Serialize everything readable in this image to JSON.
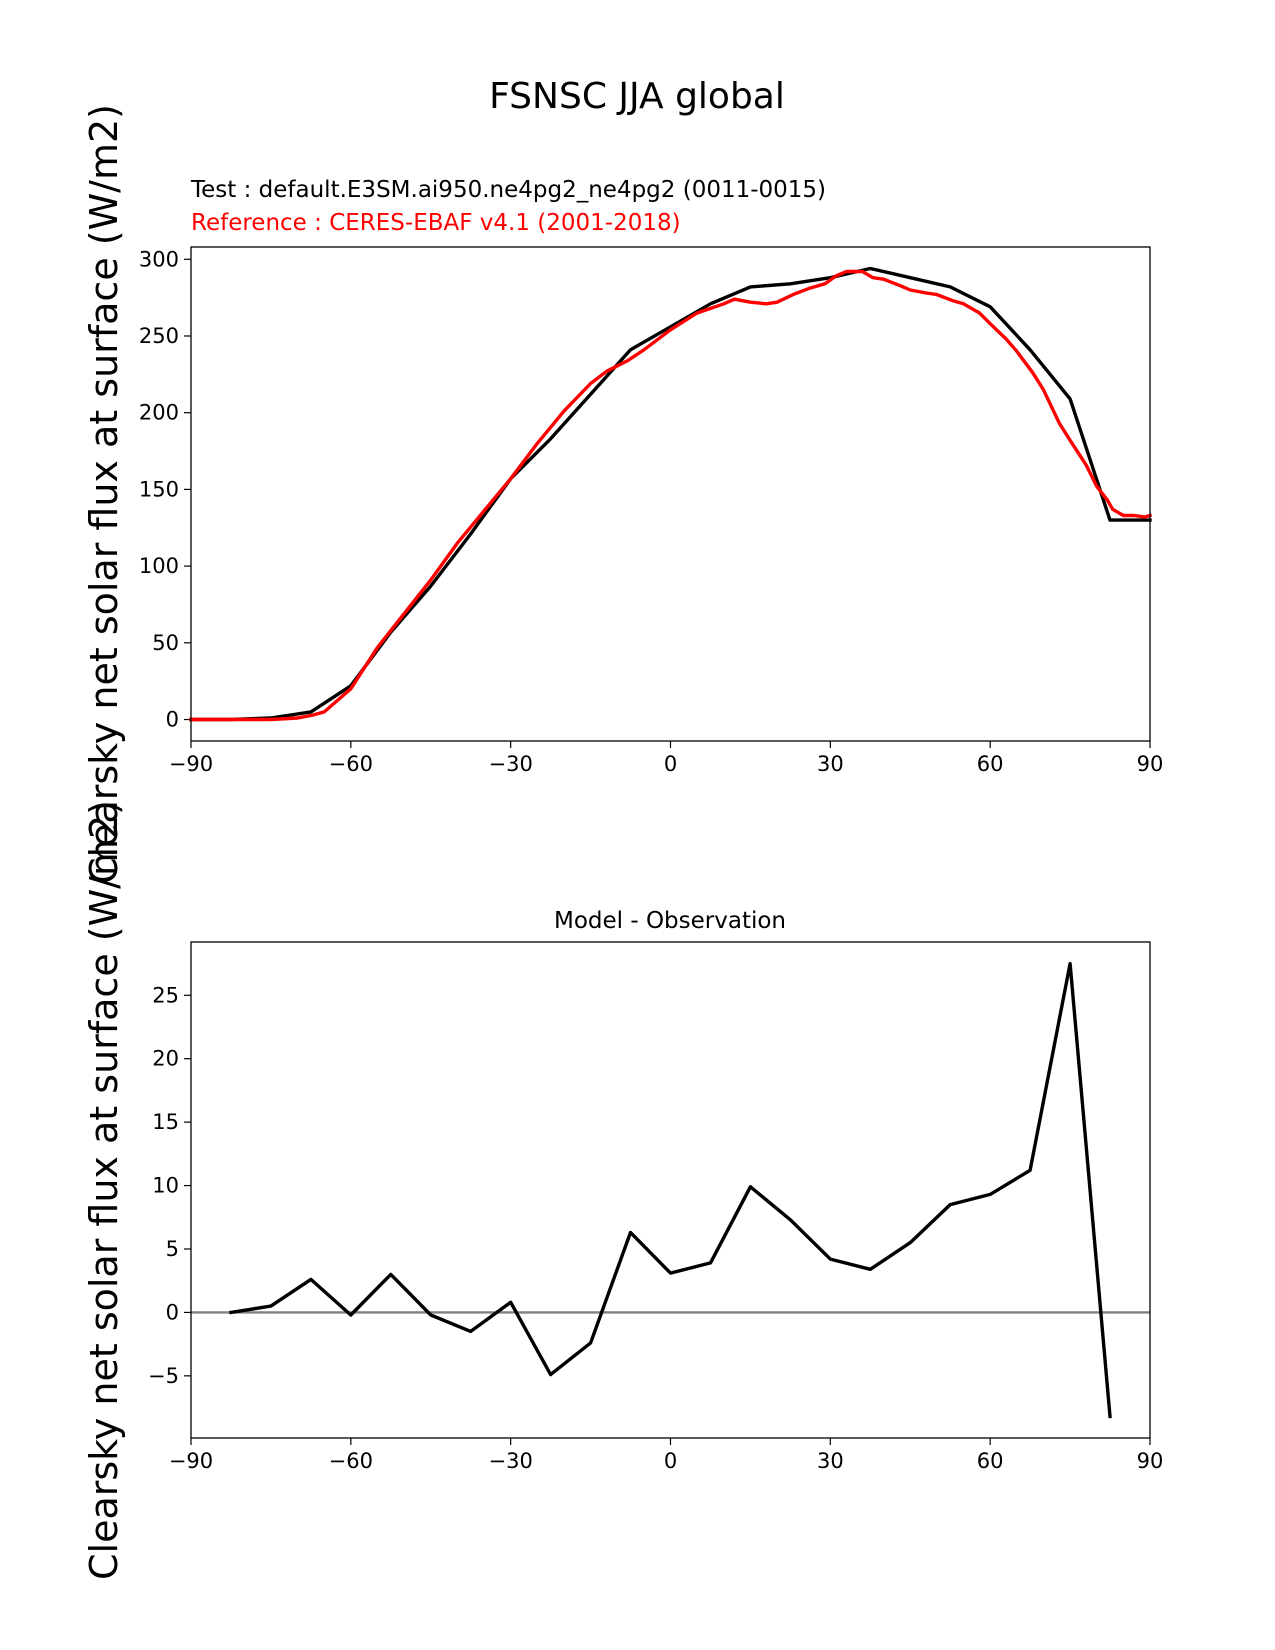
{
  "figure": {
    "suptitle": "FSNSC JJA global"
  },
  "chart_data": [
    {
      "type": "line",
      "test_label": "Test : default.E3SM.ai950.ne4pg2_ne4pg2 (0011-0015)",
      "reference_label": "Reference : CERES-EBAF v4.1 (2001-2018)",
      "ylabel": "Clearsky net solar flux at surface (W/m2)",
      "xlim": [
        -90,
        90
      ],
      "ylim": [
        -14,
        308
      ],
      "xticks": [
        "−90",
        "−60",
        "−30",
        "0",
        "30",
        "60",
        "90"
      ],
      "xtick_values": [
        -90,
        -60,
        -30,
        0,
        30,
        60,
        90
      ],
      "yticks": [
        "0",
        "50",
        "100",
        "150",
        "200",
        "250",
        "300"
      ],
      "ytick_values": [
        0,
        50,
        100,
        150,
        200,
        250,
        300
      ],
      "series": [
        {
          "name": "Test",
          "color": "#000000",
          "x": [
            -90,
            -82.5,
            -75,
            -67.5,
            -60,
            -52.5,
            -45,
            -37.5,
            -30,
            -22.5,
            -15,
            -7.5,
            0,
            7.5,
            15,
            22.5,
            30,
            37.5,
            45,
            52.5,
            60,
            67.5,
            75,
            82.5,
            90
          ],
          "y": [
            0,
            0,
            1,
            5,
            22,
            57,
            87,
            121,
            157,
            183,
            212,
            241,
            256,
            271,
            282,
            284,
            288,
            294,
            288,
            282,
            269,
            241,
            209,
            130,
            130
          ]
        },
        {
          "name": "Reference",
          "color": "#ff0000",
          "x": [
            -90,
            -80,
            -75,
            -70,
            -67,
            -65,
            -63,
            -60,
            -55,
            -50,
            -45,
            -40,
            -35,
            -30,
            -25,
            -20,
            -15,
            -12,
            -8,
            -5,
            0,
            5,
            10,
            12,
            15,
            18,
            20,
            23,
            26,
            29,
            31,
            33,
            36,
            38,
            40,
            43,
            45,
            48,
            50,
            53,
            55,
            58,
            60,
            63,
            65,
            68,
            70,
            73,
            75,
            78,
            80,
            82,
            83,
            85,
            87,
            89,
            90
          ],
          "y": [
            0,
            0,
            0,
            1,
            3,
            5,
            11,
            20,
            47,
            69,
            91,
            115,
            136,
            157,
            180,
            201,
            219,
            227,
            234,
            241,
            254,
            265,
            271,
            274,
            272,
            271,
            272,
            277,
            281,
            284,
            289,
            292,
            292,
            288,
            287,
            283,
            280,
            278,
            277,
            273,
            271,
            265,
            258,
            248,
            240,
            226,
            215,
            193,
            182,
            166,
            152,
            143,
            137,
            133,
            133,
            132,
            133
          ]
        }
      ]
    },
    {
      "type": "line",
      "title": "Model - Observation",
      "ylabel": "Clearsky net solar flux at surface (W/m2)",
      "xlim": [
        -90,
        90
      ],
      "ylim": [
        -9.9,
        29.2
      ],
      "xticks": [
        "−90",
        "−60",
        "−30",
        "0",
        "30",
        "60",
        "90"
      ],
      "xtick_values": [
        -90,
        -60,
        -30,
        0,
        30,
        60,
        90
      ],
      "yticks": [
        "−5",
        "0",
        "5",
        "10",
        "15",
        "20",
        "25"
      ],
      "ytick_values": [
        -5,
        0,
        5,
        10,
        15,
        20,
        25
      ],
      "zero_line_color": "#808080",
      "series": [
        {
          "name": "Model - Observation",
          "color": "#000000",
          "x": [
            -82.5,
            -75,
            -67.5,
            -60,
            -52.5,
            -45,
            -37.5,
            -30,
            -22.5,
            -15,
            -7.5,
            0,
            7.5,
            15,
            22.5,
            30,
            37.5,
            45,
            52.5,
            60,
            67.5,
            75,
            82.5
          ],
          "y": [
            0,
            0.5,
            2.6,
            -0.2,
            3.0,
            -0.2,
            -1.5,
            0.8,
            -4.9,
            -2.4,
            6.3,
            3.1,
            3.9,
            9.9,
            7.3,
            4.2,
            3.4,
            5.5,
            8.5,
            9.3,
            11.2,
            27.5,
            -8.2
          ]
        }
      ]
    }
  ]
}
